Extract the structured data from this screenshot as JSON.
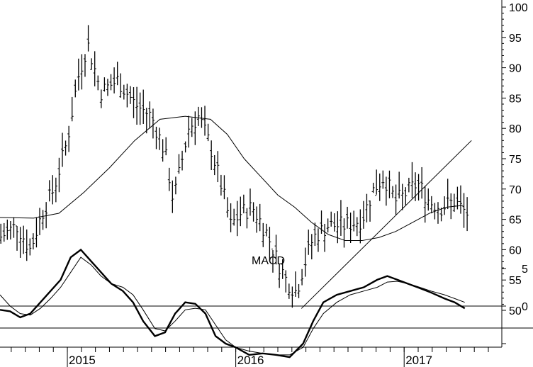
{
  "chart_data": [
    {
      "type": "ohlc-bar",
      "ylim": [
        50,
        100
      ],
      "y_ticks": [
        50,
        55,
        60,
        65,
        70,
        75,
        80,
        85,
        90,
        95,
        100
      ],
      "x_labels": [
        "2015",
        "2016",
        "2017"
      ],
      "x_label_positions": [
        2015.0,
        2016.0,
        2017.0
      ],
      "xlim": [
        2014.6,
        2017.58
      ],
      "price_series": {
        "t": [
          2014.6,
          2014.7,
          2014.78,
          2014.85,
          2014.92,
          2015.0,
          2015.06,
          2015.12,
          2015.2,
          2015.3,
          2015.4,
          2015.5,
          2015.58,
          2015.63,
          2015.66,
          2015.72,
          2015.78,
          2015.85,
          2015.92,
          2015.97,
          2016.03,
          2016.1,
          2016.18,
          2016.25,
          2016.3,
          2016.36,
          2016.4,
          2016.46,
          2016.55,
          2016.65,
          2016.75,
          2016.82,
          2016.88,
          2016.95,
          2017.0,
          2017.08,
          2017.15,
          2017.22,
          2017.3,
          2017.37
        ],
        "close": [
          62,
          64,
          60,
          66,
          70,
          78,
          88,
          94,
          86,
          88,
          84,
          82,
          76,
          68,
          72,
          80,
          82,
          77,
          70,
          64,
          66,
          67,
          63,
          58,
          55,
          53,
          57,
          62,
          64,
          64,
          65,
          70,
          72,
          68,
          69,
          71,
          68,
          67,
          68,
          66
        ]
      },
      "moving_average": {
        "t": [
          2014.6,
          2014.8,
          2014.95,
          2015.1,
          2015.25,
          2015.4,
          2015.55,
          2015.7,
          2015.85,
          2015.95,
          2016.05,
          2016.15,
          2016.25,
          2016.35,
          2016.45,
          2016.55,
          2016.65,
          2016.75,
          2016.85,
          2016.95,
          2017.05,
          2017.15,
          2017.25,
          2017.35
        ],
        "values": [
          65.3,
          65.2,
          66.0,
          69.5,
          73.5,
          78.0,
          81.5,
          82.0,
          81.5,
          79.0,
          75.0,
          72.0,
          69.0,
          67.0,
          64.5,
          62.5,
          61.5,
          61.5,
          62.0,
          63.0,
          64.5,
          66.0,
          67.0,
          67.3
        ]
      },
      "trendline": {
        "from": [
          2016.39,
          50.3
        ],
        "to": [
          2017.4,
          78.0
        ]
      }
    },
    {
      "type": "line",
      "label": "MACD",
      "ylim": [
        -7,
        10
      ],
      "y_ticks": [
        -5,
        0,
        5
      ],
      "y_tick_labels": [
        "",
        "0",
        "5"
      ],
      "series": [
        {
          "t": [
            2014.6,
            2014.66,
            2014.72,
            2014.78,
            2014.84,
            2014.9,
            2014.96,
            2015.02,
            2015.08,
            2015.14,
            2015.2,
            2015.26,
            2015.33,
            2015.39,
            2015.45,
            2015.52,
            2015.58,
            2015.64,
            2015.7,
            2015.76,
            2015.82,
            2015.88,
            2015.94,
            2016.0,
            2016.08,
            2016.16,
            2016.24,
            2016.32,
            2016.4,
            2016.46,
            2016.52,
            2016.6,
            2016.68,
            2016.76,
            2016.84,
            2016.9,
            2016.96,
            2017.02,
            2017.08,
            2017.16,
            2017.24,
            2017.3,
            2017.36
          ],
          "values": [
            -0.5,
            -0.7,
            -1.5,
            -1.0,
            0.5,
            2.0,
            3.5,
            6.5,
            7.5,
            6.0,
            4.5,
            3.0,
            2.0,
            0.5,
            -2.0,
            -4.0,
            -3.5,
            -1.0,
            0.5,
            0.3,
            -1.0,
            -4.0,
            -5.0,
            -5.5,
            -6.5,
            -6.3,
            -6.5,
            -6.8,
            -5.0,
            -2.0,
            0.5,
            1.5,
            2.0,
            2.5,
            3.5,
            4.0,
            3.5,
            3.0,
            2.5,
            1.8,
            1.0,
            0.5,
            -0.3
          ]
        },
        {
          "t": [
            2014.6,
            2014.66,
            2014.72,
            2014.78,
            2014.84,
            2014.9,
            2014.96,
            2015.02,
            2015.08,
            2015.14,
            2015.2,
            2015.26,
            2015.33,
            2015.39,
            2015.45,
            2015.52,
            2015.58,
            2015.64,
            2015.7,
            2015.76,
            2015.82,
            2015.88,
            2015.94,
            2016.0,
            2016.08,
            2016.16,
            2016.24,
            2016.32,
            2016.4,
            2016.46,
            2016.52,
            2016.6,
            2016.68,
            2016.76,
            2016.84,
            2016.9,
            2016.96,
            2017.02,
            2017.08,
            2017.16,
            2017.24,
            2017.3,
            2017.36
          ],
          "values": [
            1.5,
            0.0,
            -1.0,
            -1.2,
            -0.3,
            1.0,
            2.5,
            4.5,
            6.5,
            5.5,
            4.0,
            3.0,
            2.5,
            1.5,
            -0.5,
            -3.0,
            -3.3,
            -2.0,
            -0.5,
            -0.3,
            -0.5,
            -2.5,
            -4.5,
            -5.5,
            -6.0,
            -6.3,
            -6.5,
            -6.5,
            -5.5,
            -3.0,
            -1.0,
            0.5,
            1.5,
            2.0,
            2.5,
            3.2,
            3.3,
            3.0,
            2.6,
            2.0,
            1.5,
            1.0,
            0.5
          ]
        }
      ]
    }
  ]
}
